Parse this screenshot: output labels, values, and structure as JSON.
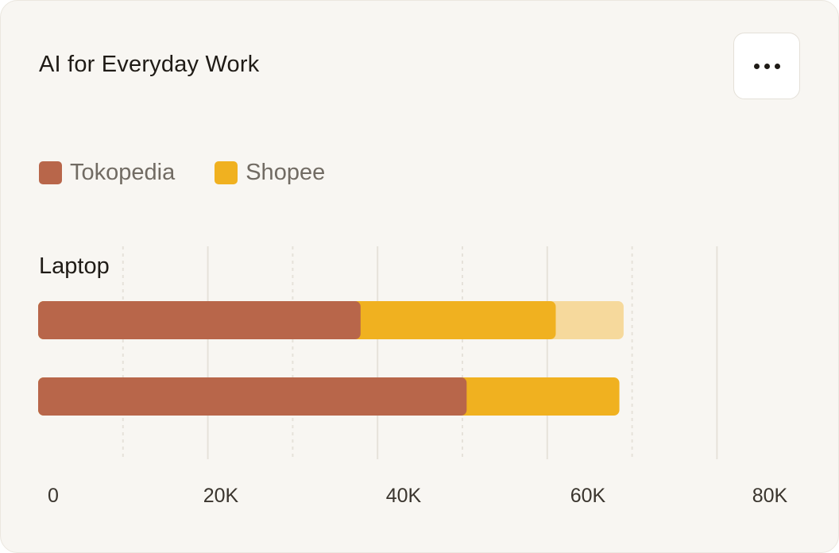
{
  "card": {
    "title": "AI for Everyday Work",
    "menu_icon": "more-horizontal-icon"
  },
  "legend": [
    {
      "label": "Tokopedia",
      "color": "#b8664a"
    },
    {
      "label": "Shopee",
      "color": "#f0b120"
    }
  ],
  "chart_data": {
    "type": "bar",
    "orientation": "horizontal",
    "stacked": true,
    "category_label": "Laptop",
    "xlim": [
      0,
      80000
    ],
    "x_ticks": [
      0,
      20000,
      40000,
      60000,
      80000
    ],
    "x_tick_labels": [
      "0",
      "20K",
      "40K",
      "60K",
      "80K"
    ],
    "grid": true,
    "legend_position": "top-left",
    "series": [
      {
        "name": "Tokopedia",
        "color": "#b8664a",
        "values": [
          38000,
          50500
        ]
      },
      {
        "name": "Shopee",
        "color": "#f0b120",
        "values": [
          23000,
          18000
        ]
      }
    ],
    "remainder": {
      "color": "#f6d99c",
      "values": [
        8000,
        0
      ]
    }
  }
}
